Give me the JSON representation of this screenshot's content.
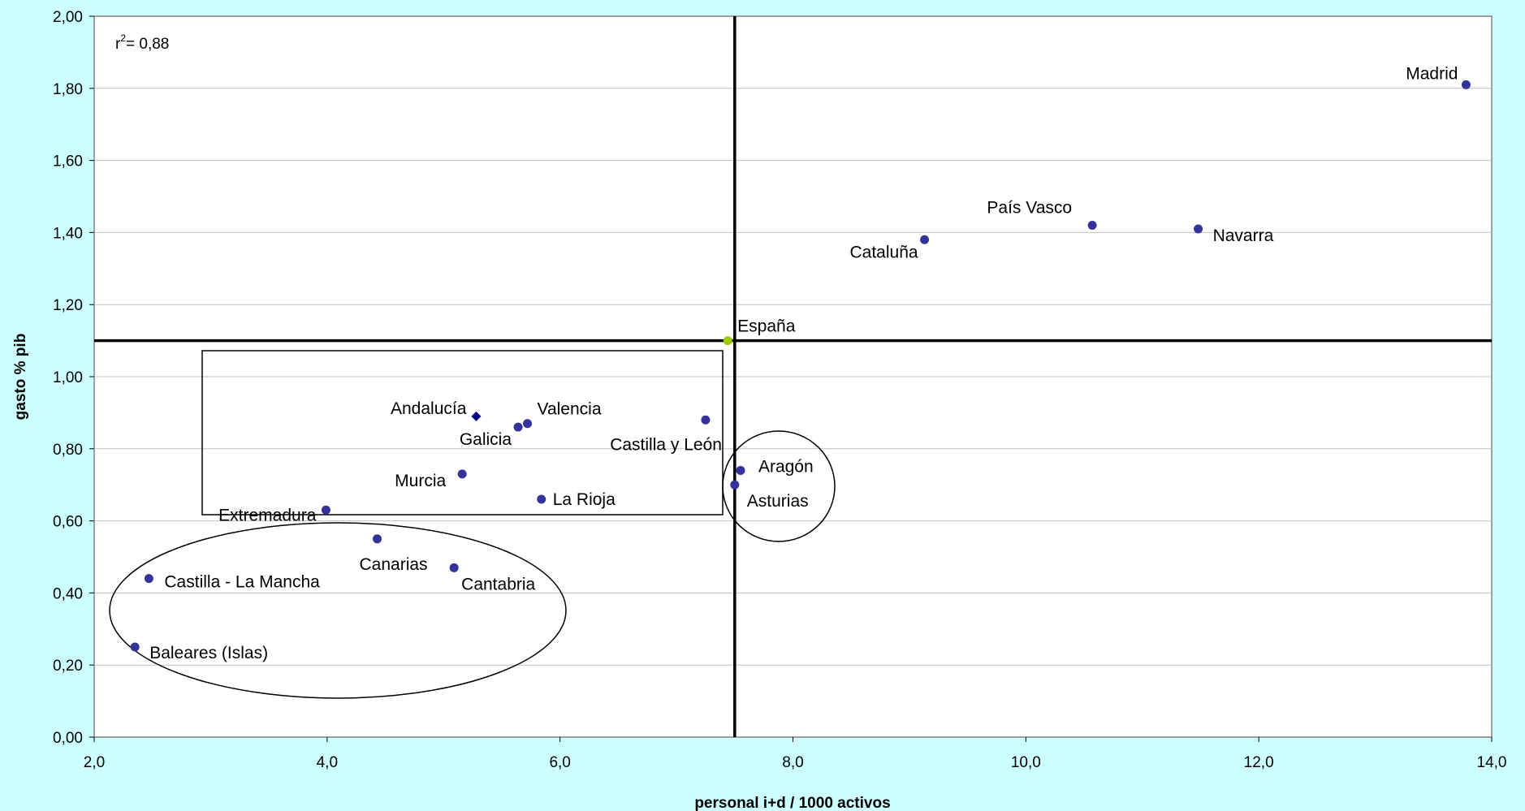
{
  "chart_data": {
    "type": "scatter",
    "xlabel": "personal i+d / 1000 activos",
    "ylabel": "gasto % pib",
    "xlim": [
      2.0,
      14.0
    ],
    "ylim": [
      0.0,
      2.0
    ],
    "x_ticks": [
      "2,0",
      "4,0",
      "6,0",
      "8,0",
      "10,0",
      "12,0",
      "14,0"
    ],
    "y_ticks": [
      "0,00",
      "0,20",
      "0,40",
      "0,60",
      "0,80",
      "1,00",
      "1,20",
      "1,40",
      "1,60",
      "1,80",
      "2,00"
    ],
    "grid": "horizontal",
    "annotation": {
      "r_prefix": "r",
      "r_sup": "2",
      "r_value": "= 0,88"
    },
    "reference_lines": {
      "x": 7.5,
      "y": 1.1
    },
    "points": [
      {
        "label": "Madrid",
        "x": 13.78,
        "y": 1.81,
        "color": "#333399",
        "marker": "circle"
      },
      {
        "label": "País Vasco",
        "x": 10.57,
        "y": 1.42,
        "color": "#333399",
        "marker": "circle"
      },
      {
        "label": "Navarra",
        "x": 11.48,
        "y": 1.41,
        "color": "#333399",
        "marker": "circle"
      },
      {
        "label": "Cataluña",
        "x": 9.13,
        "y": 1.38,
        "color": "#333399",
        "marker": "circle"
      },
      {
        "label": "España",
        "x": 7.44,
        "y": 1.1,
        "color": "#99cc00",
        "marker": "circle"
      },
      {
        "label": "Andalucía",
        "x": 5.28,
        "y": 0.89,
        "color": "#000080",
        "marker": "diamond"
      },
      {
        "label": "Valencia",
        "x": 5.72,
        "y": 0.87,
        "color": "#333399",
        "marker": "circle"
      },
      {
        "label": "Galicia",
        "x": 5.64,
        "y": 0.86,
        "color": "#333399",
        "marker": "circle"
      },
      {
        "label": "Castilla y León",
        "x": 7.25,
        "y": 0.88,
        "color": "#333399",
        "marker": "circle"
      },
      {
        "label": "Murcia",
        "x": 5.16,
        "y": 0.73,
        "color": "#333399",
        "marker": "circle"
      },
      {
        "label": "La Rioja",
        "x": 5.84,
        "y": 0.66,
        "color": "#333399",
        "marker": "circle"
      },
      {
        "label": "Extremadura",
        "x": 3.99,
        "y": 0.63,
        "color": "#333399",
        "marker": "circle"
      },
      {
        "label": "Aragón",
        "x": 7.55,
        "y": 0.74,
        "color": "#333399",
        "marker": "circle"
      },
      {
        "label": "Asturias",
        "x": 7.5,
        "y": 0.7,
        "color": "#333399",
        "marker": "circle"
      },
      {
        "label": "Canarias",
        "x": 4.43,
        "y": 0.55,
        "color": "#333399",
        "marker": "circle"
      },
      {
        "label": "Castilla - La Mancha",
        "x": 2.47,
        "y": 0.44,
        "color": "#333399",
        "marker": "circle"
      },
      {
        "label": "Cantabria",
        "x": 5.09,
        "y": 0.47,
        "color": "#333399",
        "marker": "circle"
      },
      {
        "label": "Baleares (Islas)",
        "x": 2.35,
        "y": 0.25,
        "color": "#333399",
        "marker": "circle"
      }
    ]
  }
}
